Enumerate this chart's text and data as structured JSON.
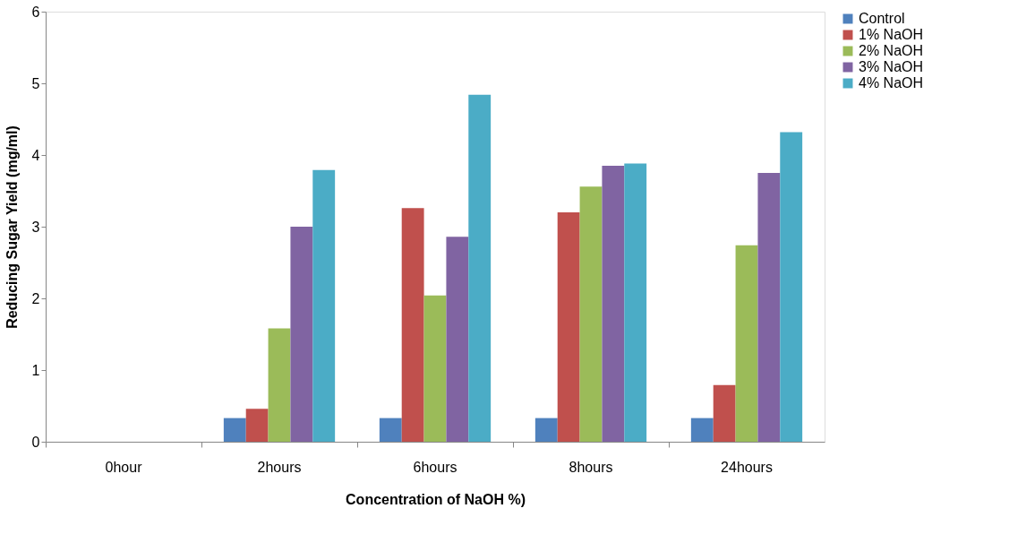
{
  "chart_data": {
    "type": "bar",
    "xlabel": "Concentration of NaOH %)",
    "ylabel": "Reducing Sugar Yield (mg/ml)",
    "categories": [
      "0hour",
      "2hours",
      "6hours",
      "8hours",
      "24hours"
    ],
    "series": [
      {
        "name": "Control",
        "color": "#4f81bd",
        "values": [
          0,
          0.33,
          0.33,
          0.33,
          0.33
        ]
      },
      {
        "name": "1% NaOH",
        "color": "#c0504d",
        "values": [
          0,
          0.46,
          3.26,
          3.2,
          0.79
        ]
      },
      {
        "name": "2% NaOH",
        "color": "#9bbb59",
        "values": [
          0,
          1.58,
          2.04,
          3.56,
          2.74
        ]
      },
      {
        "name": "3% NaOH",
        "color": "#8064a2",
        "values": [
          0,
          3.0,
          2.86,
          3.85,
          3.75
        ]
      },
      {
        "name": "4% NaOH",
        "color": "#4bacc6",
        "values": [
          0,
          3.79,
          4.84,
          3.88,
          4.32
        ]
      }
    ],
    "ylim": [
      0,
      6
    ],
    "yticks": [
      0,
      1,
      2,
      3,
      4,
      5,
      6
    ],
    "grid": false,
    "legend": "right"
  }
}
